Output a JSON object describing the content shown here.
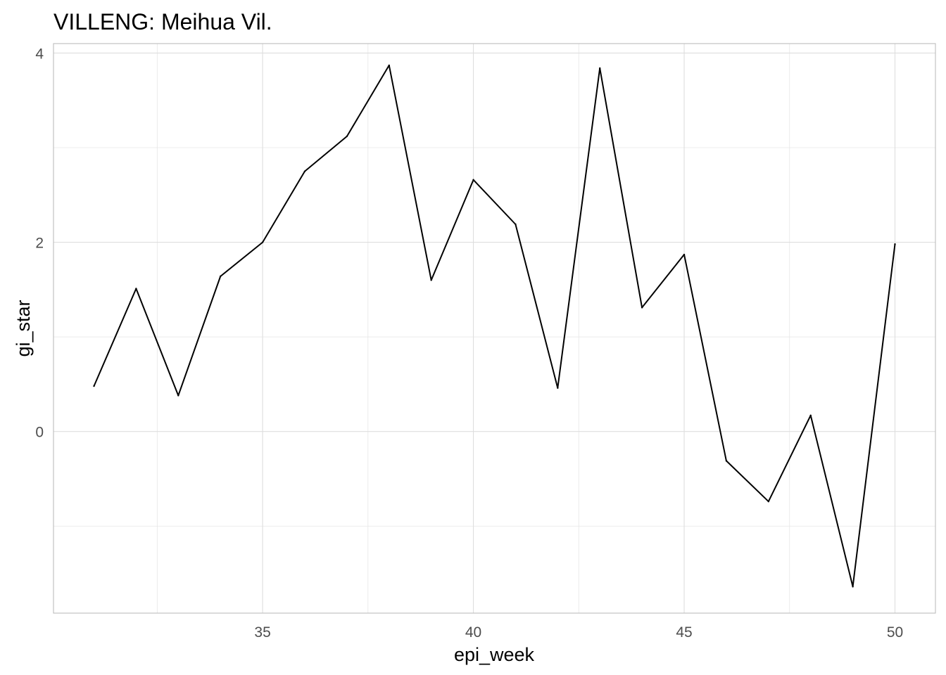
{
  "chart_data": {
    "type": "line",
    "title": "VILLENG: Meihua Vil.",
    "xlabel": "epi_week",
    "ylabel": "gi_star",
    "xlim": [
      30.04,
      50.96
    ],
    "ylim": [
      -1.92,
      4.1
    ],
    "x_ticks": [
      35,
      40,
      45,
      50
    ],
    "x_tick_labels": [
      "35",
      "40",
      "45",
      "50"
    ],
    "x_minor_ticks": [
      32.5,
      37.5,
      42.5,
      47.5
    ],
    "y_ticks": [
      0,
      2,
      4
    ],
    "y_tick_labels": [
      "0",
      "2",
      "4"
    ],
    "y_minor_ticks": [
      -1,
      1,
      3
    ],
    "grid": true,
    "legend": "none",
    "series": [
      {
        "color": "#000000",
        "x": [
          31,
          32,
          33,
          34,
          35,
          36,
          37,
          38,
          39,
          40,
          41,
          42,
          43,
          44,
          45,
          46,
          47,
          48,
          49,
          50
        ],
        "y": [
          0.48,
          1.51,
          0.38,
          1.64,
          2.0,
          2.75,
          3.12,
          3.87,
          1.6,
          2.66,
          2.19,
          0.46,
          3.84,
          1.31,
          1.87,
          -0.31,
          -0.74,
          0.17,
          -1.64,
          1.98
        ]
      }
    ]
  }
}
